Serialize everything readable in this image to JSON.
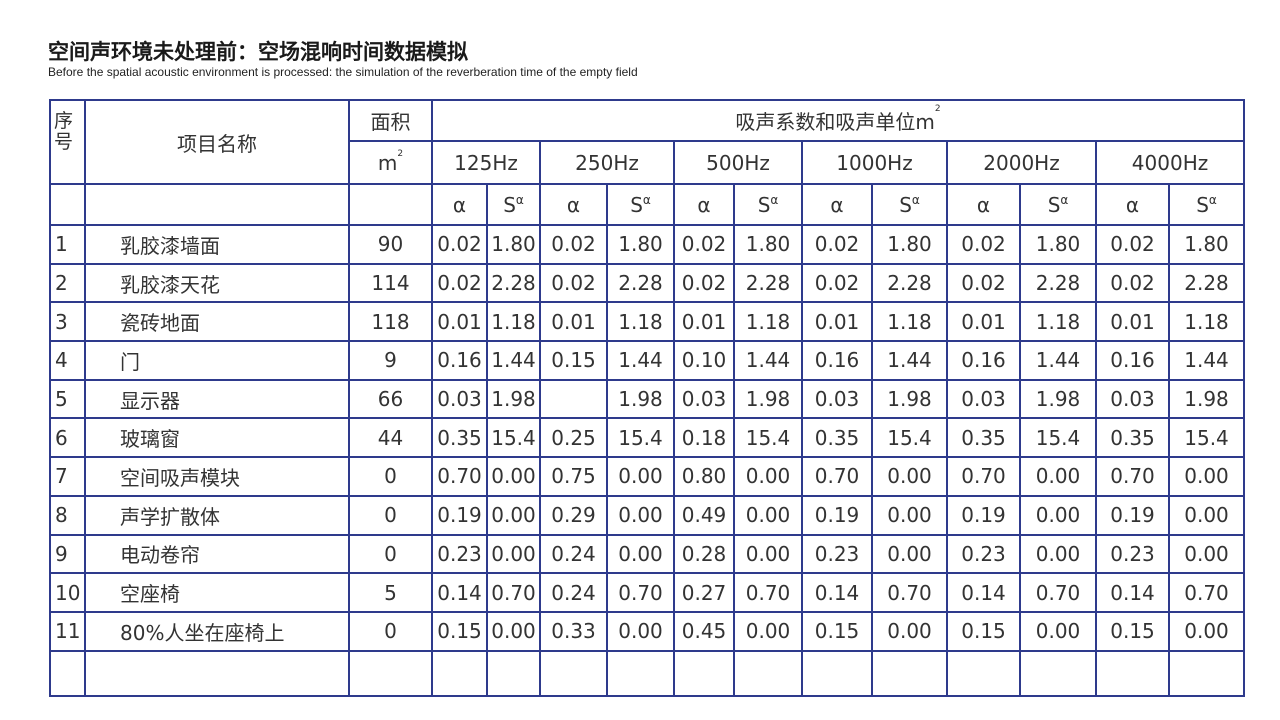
{
  "header": {
    "title": "空间声环境未处理前：空场混响时间数据模拟",
    "subtitle": "Before the spatial acoustic environment is processed: the simulation of the reverberation time of the empty field"
  },
  "table": {
    "columns": {
      "index": [
        "序",
        "号"
      ],
      "name": "项目名称",
      "area": "面积",
      "area_unit": {
        "base": "m",
        "sup": "2"
      },
      "absorption": {
        "base": "吸声系数和吸声单位m",
        "sup": "2"
      },
      "frequencies": [
        "125Hz",
        "250Hz",
        "500Hz",
        "1000Hz",
        "2000Hz",
        "4000Hz"
      ],
      "alpha": "α",
      "s_alpha": {
        "base": "S",
        "sup": "α"
      }
    },
    "rows": [
      [
        "1",
        "乳胶漆墙面",
        "90",
        "0.02",
        "1.80",
        "0.02",
        "1.80",
        "0.02",
        "1.80",
        "0.02",
        "1.80",
        "0.02",
        "1.80",
        "0.02",
        "1.80"
      ],
      [
        "2",
        "乳胶漆天花",
        "114",
        "0.02",
        "2.28",
        "0.02",
        "2.28",
        "0.02",
        "2.28",
        "0.02",
        "2.28",
        "0.02",
        "2.28",
        "0.02",
        "2.28"
      ],
      [
        "3",
        "瓷砖地面",
        "118",
        "0.01",
        "1.18",
        "0.01",
        "1.18",
        "0.01",
        "1.18",
        "0.01",
        "1.18",
        "0.01",
        "1.18",
        "0.01",
        "1.18"
      ],
      [
        "4",
        "门",
        "9",
        "0.16",
        "1.44",
        "0.15",
        "1.44",
        "0.10",
        "1.44",
        "0.16",
        "1.44",
        "0.16",
        "1.44",
        "0.16",
        "1.44"
      ],
      [
        "5",
        "显示器",
        "66",
        "0.03",
        "1.98",
        null,
        "1.98",
        "0.03",
        "1.98",
        "0.03",
        "1.98",
        "0.03",
        "1.98",
        "0.03",
        "1.98"
      ],
      [
        "6",
        "玻璃窗",
        "44",
        "0.35",
        "15.4",
        "0.25",
        "15.4",
        "0.18",
        "15.4",
        "0.35",
        "15.4",
        "0.35",
        "15.4",
        "0.35",
        "15.4"
      ],
      [
        "7",
        "空间吸声模块",
        "0",
        "0.70",
        "0.00",
        "0.75",
        "0.00",
        "0.80",
        "0.00",
        "0.70",
        "0.00",
        "0.70",
        "0.00",
        "0.70",
        "0.00"
      ],
      [
        "8",
        "声学扩散体",
        "0",
        "0.19",
        "0.00",
        "0.29",
        "0.00",
        "0.49",
        "0.00",
        "0.19",
        "0.00",
        "0.19",
        "0.00",
        "0.19",
        "0.00"
      ],
      [
        "9",
        "电动卷帘",
        "0",
        "0.23",
        "0.00",
        "0.24",
        "0.00",
        "0.28",
        "0.00",
        "0.23",
        "0.00",
        "0.23",
        "0.00",
        "0.23",
        "0.00"
      ],
      [
        "10",
        "空座椅",
        "5",
        "0.14",
        "0.70",
        "0.24",
        "0.70",
        "0.27",
        "0.70",
        "0.14",
        "0.70",
        "0.14",
        "0.70",
        "0.14",
        "0.70"
      ],
      [
        "11",
        "80%人坐在座椅上",
        "0",
        "0.15",
        "0.00",
        "0.33",
        "0.00",
        "0.45",
        "0.00",
        "0.15",
        "0.00",
        "0.15",
        "0.00",
        "0.15",
        "0.00"
      ]
    ]
  }
}
